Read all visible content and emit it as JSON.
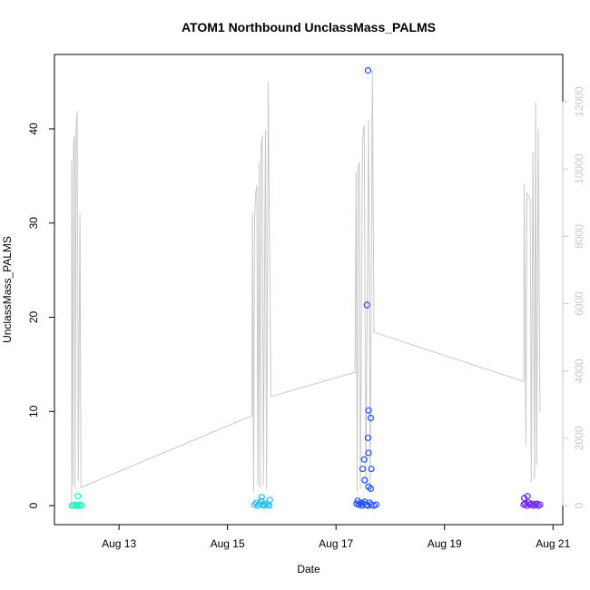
{
  "chart_data": {
    "type": "scatter",
    "title": "ATOM1 Northbound UnclassMass_PALMS",
    "x_label": "Date",
    "y_label": "UnclassMass_PALMS",
    "xlim": [
      11.81,
      21.18
    ],
    "xticks": [
      {
        "value": 13,
        "label": "Aug 13"
      },
      {
        "value": 15,
        "label": "Aug 15"
      },
      {
        "value": 17,
        "label": "Aug 17"
      },
      {
        "value": 19,
        "label": "Aug 19"
      },
      {
        "value": 21,
        "label": "Aug 21"
      }
    ],
    "ylim": [
      -2.02,
      47.9
    ],
    "yticks": [
      0,
      10,
      20,
      30,
      40
    ],
    "y2lim": [
      -566,
      13403
    ],
    "y2ticks": [
      0,
      2000,
      4000,
      6000,
      8000,
      10000,
      12000
    ],
    "y2_color": "#c8c8c8",
    "series": [
      {
        "type": "line",
        "axis": "y2",
        "color": "#c8c8c8",
        "x": [
          12.126,
          12.126,
          12.15,
          12.16,
          12.18,
          12.19,
          12.21,
          12.23,
          12.25,
          12.28,
          12.3,
          15.45,
          15.46,
          15.48,
          15.5,
          15.52,
          15.54,
          15.56,
          15.58,
          15.6,
          15.62,
          15.64,
          15.66,
          15.7,
          15.72,
          15.75,
          15.8,
          17.35,
          17.37,
          17.39,
          17.41,
          17.43,
          17.45,
          17.49,
          17.52,
          17.55,
          17.6,
          17.63,
          17.67,
          17.7,
          20.46,
          20.47,
          20.5,
          20.52,
          20.55,
          20.58,
          20.6,
          20.63,
          20.66,
          20.68,
          20.7,
          20.73,
          20.76
        ],
        "values": [
          0,
          10270,
          600,
          10700,
          11000,
          500,
          11200,
          11730,
          700,
          8680,
          540,
          2670,
          8680,
          400,
          8600,
          9300,
          9500,
          600,
          10200,
          500,
          10700,
          11000,
          600,
          11150,
          500,
          12600,
          3240,
          3960,
          9900,
          400,
          10100,
          10200,
          500,
          10900,
          11300,
          600,
          11450,
          500,
          12950,
          5150,
          3690,
          9560,
          1800,
          9300,
          9200,
          9100,
          700,
          10500,
          800,
          12000,
          1200,
          11200,
          2800
        ]
      },
      {
        "type": "scatter",
        "axis": "y",
        "color": "#19f5c0",
        "x": [
          12.13,
          12.16,
          12.19,
          12.22,
          12.25,
          12.28,
          12.31,
          12.24
        ],
        "values": [
          0,
          0,
          0.1,
          0,
          0,
          0.1,
          0,
          1
        ]
      },
      {
        "type": "scatter",
        "axis": "y",
        "color": "#1ec0f0",
        "x": [
          15.5,
          15.53,
          15.56,
          15.59,
          15.62,
          15.65,
          15.68,
          15.71,
          15.74,
          15.77,
          15.63,
          15.78
        ],
        "values": [
          0.1,
          0.3,
          0,
          0.2,
          0.5,
          0.1,
          0,
          0.2,
          0.1,
          0,
          0.9,
          0.6
        ]
      },
      {
        "type": "scatter",
        "axis": "y",
        "color": "#1f4ff0",
        "x": [
          17.38,
          17.4,
          17.42,
          17.45,
          17.48,
          17.5,
          17.53,
          17.56,
          17.59,
          17.62,
          17.65,
          17.7,
          17.74,
          17.59,
          17.57,
          17.6,
          17.64,
          17.59,
          17.6,
          17.52,
          17.49,
          17.65,
          17.53,
          17.6,
          17.64
        ],
        "values": [
          0.2,
          0.5,
          0.1,
          0.3,
          0,
          0.2,
          0.4,
          0.1,
          0,
          0.3,
          0.1,
          0,
          0.1,
          46.2,
          21.3,
          10.1,
          9.3,
          7.2,
          5.6,
          4.9,
          3.9,
          3.9,
          2.7,
          2,
          1.8
        ]
      },
      {
        "type": "scatter",
        "axis": "y",
        "color": "#6a1ff0",
        "x": [
          20.46,
          20.49,
          20.52,
          20.55,
          20.58,
          20.61,
          20.64,
          20.67,
          20.7,
          20.73,
          20.76,
          20.47,
          20.53
        ],
        "values": [
          0.1,
          0.2,
          0,
          0.3,
          0.1,
          0.2,
          0,
          0.1,
          0.2,
          0,
          0.1,
          0.8,
          1
        ]
      }
    ]
  }
}
